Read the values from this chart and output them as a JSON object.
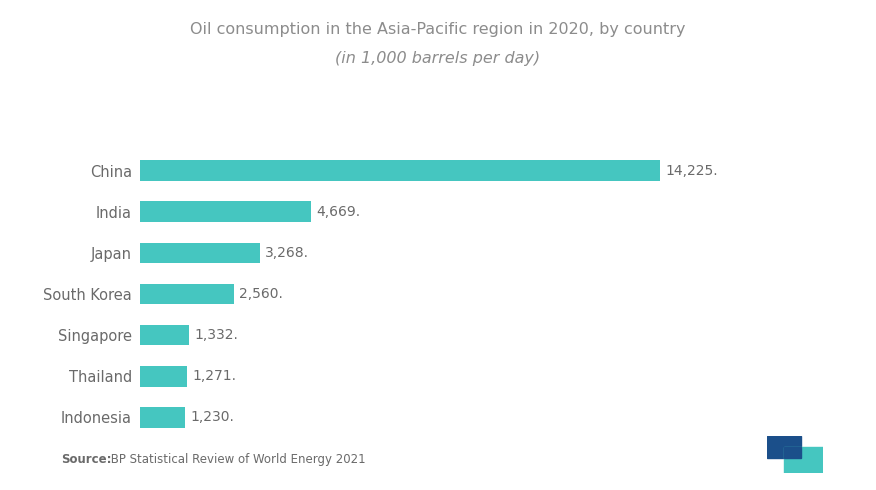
{
  "title_line1": "Oil consumption in the Asia-Pacific region in 2020, by country",
  "title_line2": "(in 1,000 barrels per day)",
  "categories": [
    "China",
    "India",
    "Japan",
    "South Korea",
    "Singapore",
    "Thailand",
    "Indonesia"
  ],
  "values": [
    14225,
    4669,
    3268,
    2560,
    1332,
    1271,
    1230
  ],
  "labels": [
    "14,225.",
    "4,669.",
    "3,268.",
    "2,560.",
    "1,332.",
    "1,271.",
    "1,230."
  ],
  "bar_color": "#45C6C0",
  "background_color": "#FFFFFF",
  "source_label_bold": "Source:",
  "source_text": " BP Statistical Review of World Energy 2021",
  "title_color": "#8C8C8C",
  "label_color": "#6A6A6A",
  "category_color": "#6A6A6A",
  "logo_dark": "#1B4F8A",
  "logo_light": "#45C6C0",
  "xlim": [
    0,
    17500
  ],
  "bar_height": 0.5
}
